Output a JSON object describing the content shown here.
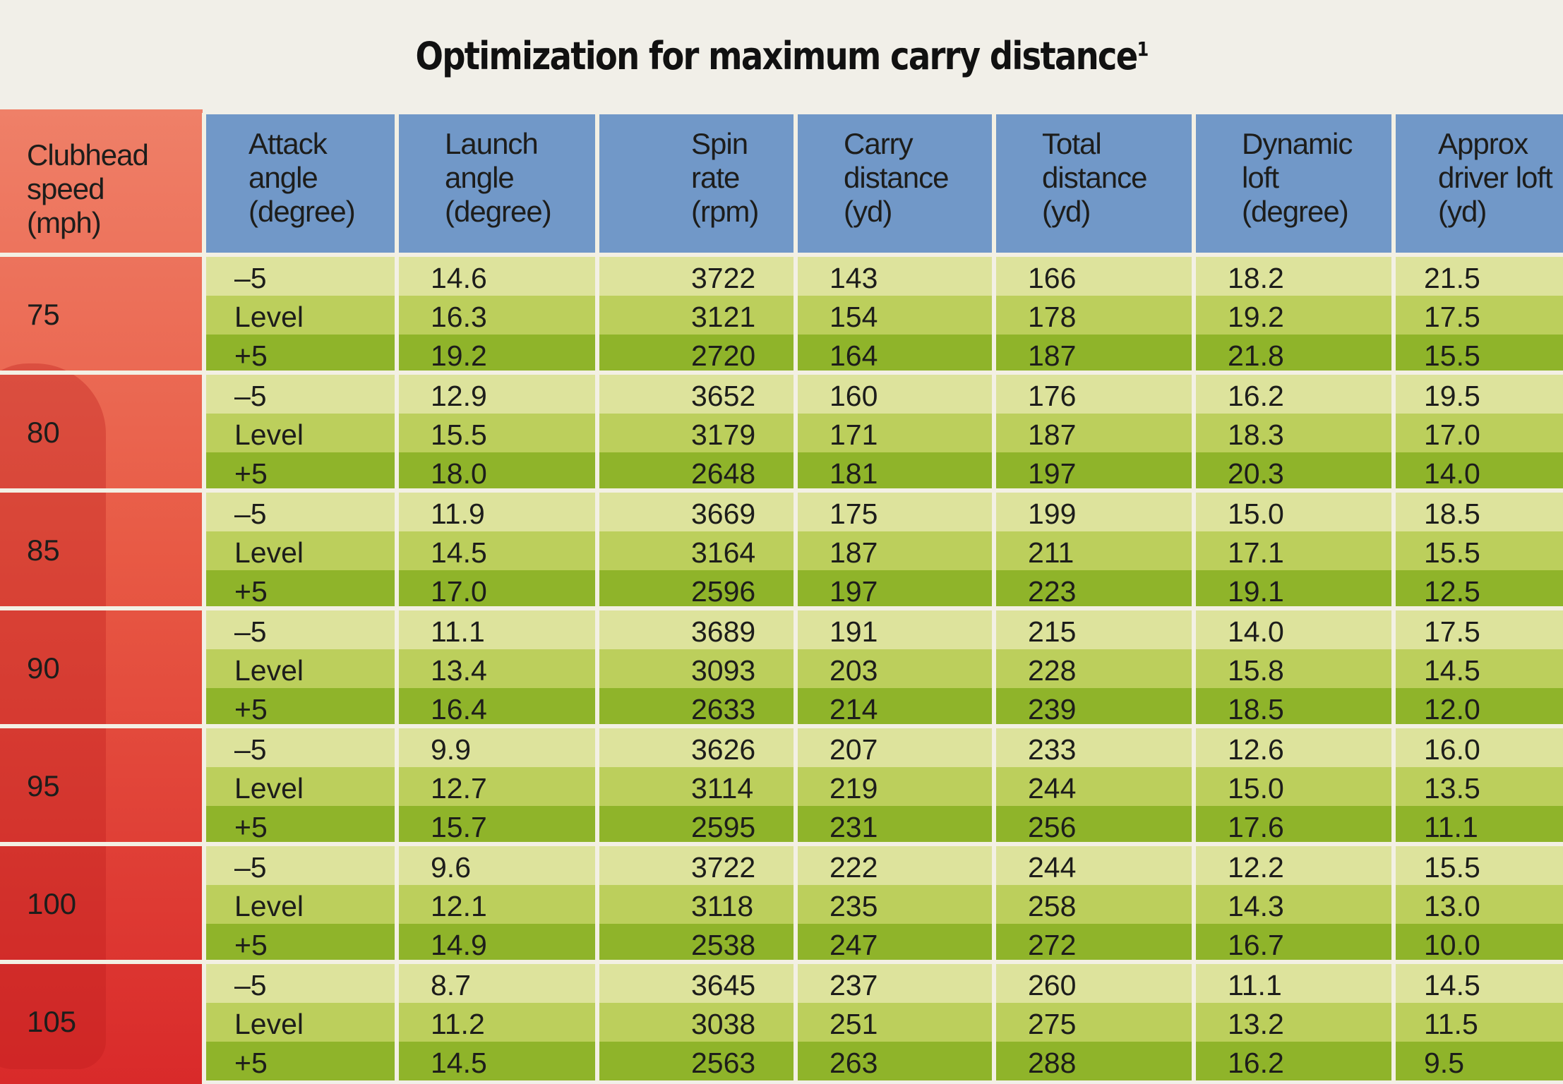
{
  "title": "Optimization for maximum carry distance",
  "title_footnote": "1",
  "headers": [
    [
      "Clubhead",
      "speed",
      "(mph)"
    ],
    [
      "Attack",
      "angle",
      "(degree)"
    ],
    [
      "Launch",
      "angle",
      "(degree)"
    ],
    [
      "Spin",
      "rate",
      "(rpm)"
    ],
    [
      "Carry",
      "distance",
      "(yd)"
    ],
    [
      "Total",
      "distance",
      "(yd)"
    ],
    [
      "Dynamic",
      "loft",
      "(degree)"
    ],
    [
      "Approx",
      "driver loft",
      "(yd)"
    ]
  ],
  "groups": [
    {
      "speed": "75",
      "rows": [
        [
          "–5",
          "14.6",
          "3722",
          "143",
          "166",
          "18.2",
          "21.5"
        ],
        [
          "Level",
          "16.3",
          "3121",
          "154",
          "178",
          "19.2",
          "17.5"
        ],
        [
          "+5",
          "19.2",
          "2720",
          "164",
          "187",
          "21.8",
          "15.5"
        ]
      ]
    },
    {
      "speed": "80",
      "rows": [
        [
          "–5",
          "12.9",
          "3652",
          "160",
          "176",
          "16.2",
          "19.5"
        ],
        [
          "Level",
          "15.5",
          "3179",
          "171",
          "187",
          "18.3",
          "17.0"
        ],
        [
          "+5",
          "18.0",
          "2648",
          "181",
          "197",
          "20.3",
          "14.0"
        ]
      ]
    },
    {
      "speed": "85",
      "rows": [
        [
          "–5",
          "11.9",
          "3669",
          "175",
          "199",
          "15.0",
          "18.5"
        ],
        [
          "Level",
          "14.5",
          "3164",
          "187",
          "211",
          "17.1",
          "15.5"
        ],
        [
          "+5",
          "17.0",
          "2596",
          "197",
          "223",
          "19.1",
          "12.5"
        ]
      ]
    },
    {
      "speed": "90",
      "rows": [
        [
          "–5",
          "11.1",
          "3689",
          "191",
          "215",
          "14.0",
          "17.5"
        ],
        [
          "Level",
          "13.4",
          "3093",
          "203",
          "228",
          "15.8",
          "14.5"
        ],
        [
          "+5",
          "16.4",
          "2633",
          "214",
          "239",
          "18.5",
          "12.0"
        ]
      ]
    },
    {
      "speed": "95",
      "rows": [
        [
          "–5",
          "9.9",
          "3626",
          "207",
          "233",
          "12.6",
          "16.0"
        ],
        [
          "Level",
          "12.7",
          "3114",
          "219",
          "244",
          "15.0",
          "13.5"
        ],
        [
          "+5",
          "15.7",
          "2595",
          "231",
          "256",
          "17.6",
          "11.1"
        ]
      ]
    },
    {
      "speed": "100",
      "rows": [
        [
          "–5",
          "9.6",
          "3722",
          "222",
          "244",
          "12.2",
          "15.5"
        ],
        [
          "Level",
          "12.1",
          "3118",
          "235",
          "258",
          "14.3",
          "13.0"
        ],
        [
          "+5",
          "14.9",
          "2538",
          "247",
          "272",
          "16.7",
          "10.0"
        ]
      ]
    },
    {
      "speed": "105",
      "rows": [
        [
          "–5",
          "8.7",
          "3645",
          "237",
          "260",
          "11.1",
          "14.5"
        ],
        [
          "Level",
          "11.2",
          "3038",
          "251",
          "275",
          "13.2",
          "11.5"
        ],
        [
          "+5",
          "14.5",
          "2563",
          "263",
          "288",
          "16.2",
          "9.5"
        ]
      ]
    }
  ],
  "colors": {
    "speed_column": "#e85a45",
    "header": "#7198c8",
    "row_light": "#dde39c",
    "row_mid": "#bccf5c",
    "row_dark": "#8fb42a"
  }
}
